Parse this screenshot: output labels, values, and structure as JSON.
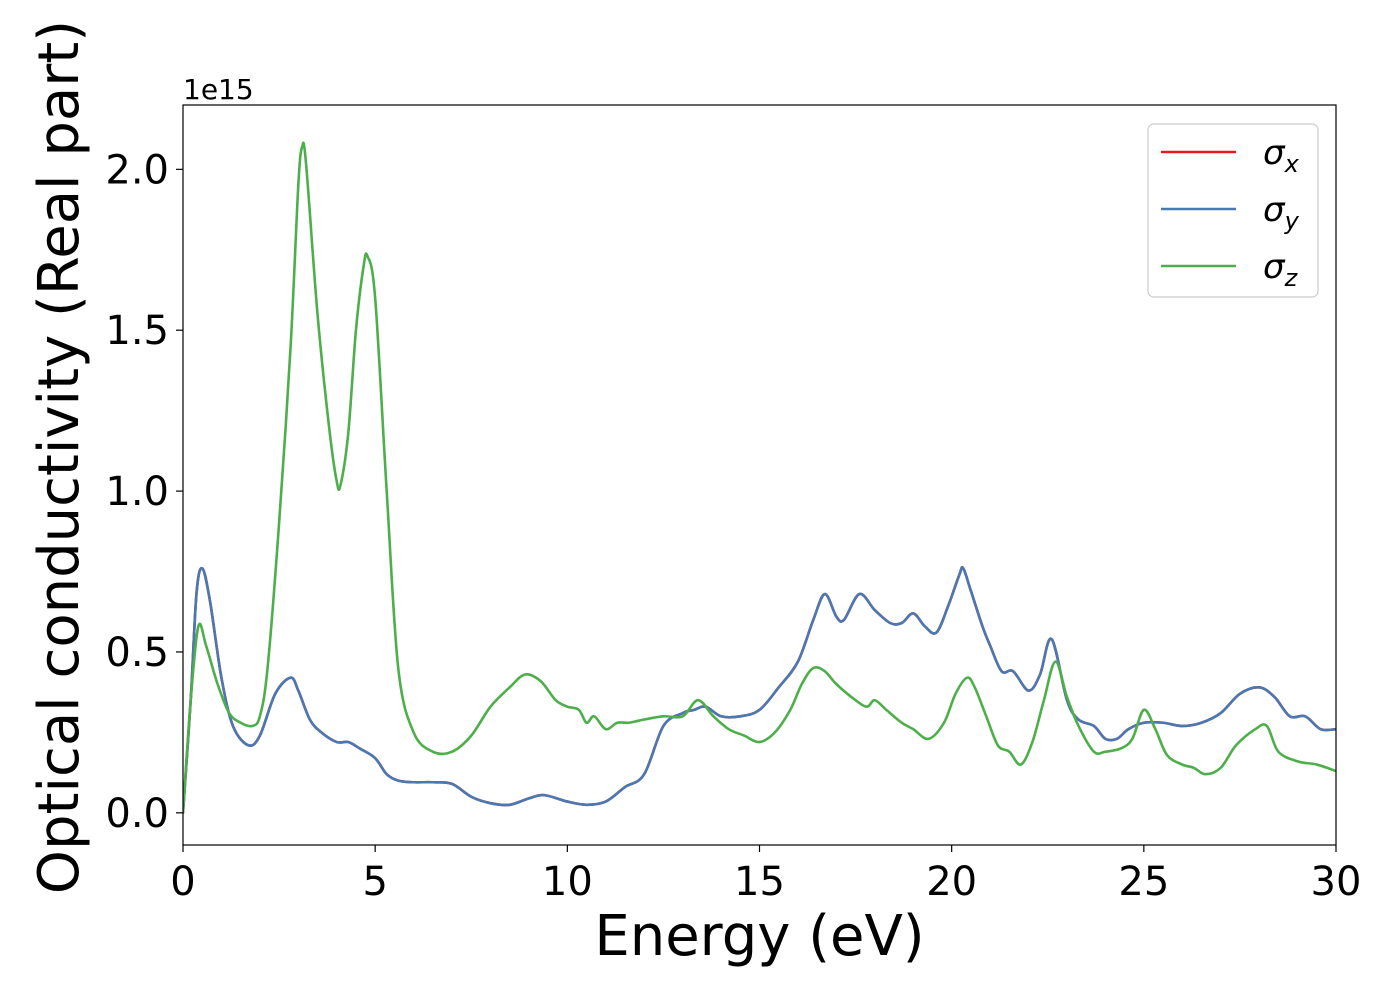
{
  "chart_data": {
    "type": "line",
    "xlabel": "Energy (eV)",
    "ylabel": "Optical conductivity (Real part)",
    "y_offset_label": "1e15",
    "xlim": [
      0,
      30
    ],
    "ylim": [
      -0.1,
      2.2
    ],
    "x_ticks": [
      0,
      5,
      10,
      15,
      20,
      25,
      30
    ],
    "x_tick_labels": [
      "0",
      "5",
      "10",
      "15",
      "20",
      "25",
      "30"
    ],
    "y_ticks": [
      0.0,
      0.5,
      1.0,
      1.5,
      2.0
    ],
    "y_tick_labels": [
      "0.0",
      "0.5",
      "1.0",
      "1.5",
      "2.0"
    ],
    "grid": false,
    "legend_position": "top-right",
    "series": [
      {
        "name": "σx",
        "legend_symbol": "σ",
        "legend_sub": "x",
        "color": "#e41a1c",
        "x": [
          0,
          0.2,
          0.35,
          0.5,
          0.7,
          1.0,
          1.3,
          1.7,
          2.0,
          2.4,
          2.8,
          3.0,
          3.3,
          3.6,
          4.0,
          4.3,
          4.6,
          5.0,
          5.3,
          5.6,
          6.0,
          6.5,
          7.0,
          7.5,
          8.0,
          8.5,
          9.0,
          9.4,
          10.0,
          10.5,
          11.0,
          11.5,
          12.0,
          12.5,
          13.0,
          13.3,
          13.6,
          14.0,
          14.5,
          15.0,
          15.5,
          16.0,
          16.4,
          16.7,
          17.0,
          17.2,
          17.6,
          18.0,
          18.4,
          18.7,
          19.0,
          19.3,
          19.6,
          19.9,
          20.2,
          20.3,
          20.5,
          20.8,
          21.0,
          21.3,
          21.6,
          22.0,
          22.3,
          22.6,
          23.0,
          23.3,
          23.7,
          24.0,
          24.3,
          24.6,
          25.0,
          25.5,
          26.0,
          26.5,
          27.0,
          27.5,
          28.0,
          28.4,
          28.8,
          29.2,
          29.6,
          30.0
        ],
        "values": [
          0.0,
          0.35,
          0.68,
          0.76,
          0.66,
          0.42,
          0.27,
          0.21,
          0.24,
          0.37,
          0.42,
          0.38,
          0.29,
          0.25,
          0.22,
          0.22,
          0.2,
          0.17,
          0.12,
          0.1,
          0.095,
          0.095,
          0.09,
          0.05,
          0.03,
          0.025,
          0.045,
          0.055,
          0.035,
          0.025,
          0.035,
          0.08,
          0.12,
          0.27,
          0.31,
          0.32,
          0.33,
          0.3,
          0.3,
          0.32,
          0.39,
          0.47,
          0.6,
          0.68,
          0.61,
          0.6,
          0.68,
          0.63,
          0.59,
          0.59,
          0.62,
          0.58,
          0.56,
          0.64,
          0.74,
          0.76,
          0.69,
          0.58,
          0.52,
          0.44,
          0.44,
          0.38,
          0.43,
          0.54,
          0.35,
          0.29,
          0.27,
          0.23,
          0.23,
          0.26,
          0.28,
          0.28,
          0.27,
          0.28,
          0.31,
          0.37,
          0.39,
          0.36,
          0.3,
          0.3,
          0.26,
          0.26
        ]
      },
      {
        "name": "σy",
        "legend_symbol": "σ",
        "legend_sub": "y",
        "color": "#4a79b2",
        "x": [
          0,
          0.2,
          0.35,
          0.5,
          0.7,
          1.0,
          1.3,
          1.7,
          2.0,
          2.4,
          2.8,
          3.0,
          3.3,
          3.6,
          4.0,
          4.3,
          4.6,
          5.0,
          5.3,
          5.6,
          6.0,
          6.5,
          7.0,
          7.5,
          8.0,
          8.5,
          9.0,
          9.4,
          10.0,
          10.5,
          11.0,
          11.5,
          12.0,
          12.5,
          13.0,
          13.3,
          13.6,
          14.0,
          14.5,
          15.0,
          15.5,
          16.0,
          16.4,
          16.7,
          17.0,
          17.2,
          17.6,
          18.0,
          18.4,
          18.7,
          19.0,
          19.3,
          19.6,
          19.9,
          20.2,
          20.3,
          20.5,
          20.8,
          21.0,
          21.3,
          21.6,
          22.0,
          22.3,
          22.6,
          23.0,
          23.3,
          23.7,
          24.0,
          24.3,
          24.6,
          25.0,
          25.5,
          26.0,
          26.5,
          27.0,
          27.5,
          28.0,
          28.4,
          28.8,
          29.2,
          29.6,
          30.0
        ],
        "values": [
          0.0,
          0.35,
          0.68,
          0.76,
          0.66,
          0.42,
          0.27,
          0.21,
          0.24,
          0.37,
          0.42,
          0.38,
          0.29,
          0.25,
          0.22,
          0.22,
          0.2,
          0.17,
          0.12,
          0.1,
          0.095,
          0.095,
          0.09,
          0.05,
          0.03,
          0.025,
          0.045,
          0.055,
          0.035,
          0.025,
          0.035,
          0.08,
          0.12,
          0.27,
          0.31,
          0.32,
          0.33,
          0.3,
          0.3,
          0.32,
          0.39,
          0.47,
          0.6,
          0.68,
          0.61,
          0.6,
          0.68,
          0.63,
          0.59,
          0.59,
          0.62,
          0.58,
          0.56,
          0.64,
          0.74,
          0.76,
          0.69,
          0.58,
          0.52,
          0.44,
          0.44,
          0.38,
          0.43,
          0.54,
          0.35,
          0.29,
          0.27,
          0.23,
          0.23,
          0.26,
          0.28,
          0.28,
          0.27,
          0.28,
          0.31,
          0.37,
          0.39,
          0.36,
          0.3,
          0.3,
          0.26,
          0.26
        ]
      },
      {
        "name": "σz",
        "legend_symbol": "σ",
        "legend_sub": "z",
        "color": "#4daf4a",
        "x": [
          0,
          0.2,
          0.4,
          0.6,
          0.9,
          1.2,
          1.5,
          1.8,
          2.0,
          2.2,
          2.5,
          2.8,
          3.0,
          3.1,
          3.2,
          3.5,
          3.8,
          4.0,
          4.1,
          4.3,
          4.5,
          4.7,
          4.8,
          5.0,
          5.3,
          5.6,
          6.0,
          6.5,
          7.0,
          7.5,
          8.0,
          8.5,
          8.9,
          9.3,
          9.7,
          10.0,
          10.3,
          10.5,
          10.7,
          11.0,
          11.3,
          11.6,
          12.0,
          12.5,
          13.0,
          13.4,
          13.8,
          14.2,
          14.6,
          15.0,
          15.4,
          15.8,
          16.1,
          16.4,
          16.7,
          17.0,
          17.5,
          17.8,
          18.0,
          18.3,
          18.7,
          19.0,
          19.4,
          19.8,
          20.1,
          20.4,
          20.6,
          20.9,
          21.2,
          21.5,
          21.8,
          22.1,
          22.4,
          22.7,
          23.0,
          23.3,
          23.7,
          24.0,
          24.4,
          24.7,
          25.0,
          25.3,
          25.6,
          26.0,
          26.3,
          26.6,
          27.0,
          27.4,
          27.9,
          28.2,
          28.5,
          29.0,
          29.5,
          30.0
        ],
        "values": [
          0.0,
          0.35,
          0.58,
          0.52,
          0.4,
          0.31,
          0.28,
          0.27,
          0.3,
          0.45,
          0.9,
          1.45,
          1.95,
          2.07,
          2.02,
          1.55,
          1.2,
          1.03,
          1.02,
          1.18,
          1.5,
          1.7,
          1.73,
          1.6,
          1.0,
          0.45,
          0.25,
          0.19,
          0.19,
          0.24,
          0.33,
          0.39,
          0.43,
          0.41,
          0.35,
          0.33,
          0.32,
          0.28,
          0.3,
          0.26,
          0.28,
          0.28,
          0.29,
          0.3,
          0.3,
          0.35,
          0.3,
          0.26,
          0.24,
          0.22,
          0.25,
          0.32,
          0.4,
          0.45,
          0.44,
          0.4,
          0.35,
          0.33,
          0.35,
          0.32,
          0.28,
          0.26,
          0.23,
          0.28,
          0.37,
          0.42,
          0.39,
          0.3,
          0.21,
          0.19,
          0.15,
          0.22,
          0.35,
          0.47,
          0.36,
          0.27,
          0.19,
          0.19,
          0.2,
          0.23,
          0.32,
          0.26,
          0.18,
          0.15,
          0.14,
          0.12,
          0.14,
          0.21,
          0.26,
          0.27,
          0.19,
          0.16,
          0.15,
          0.13
        ]
      }
    ]
  }
}
